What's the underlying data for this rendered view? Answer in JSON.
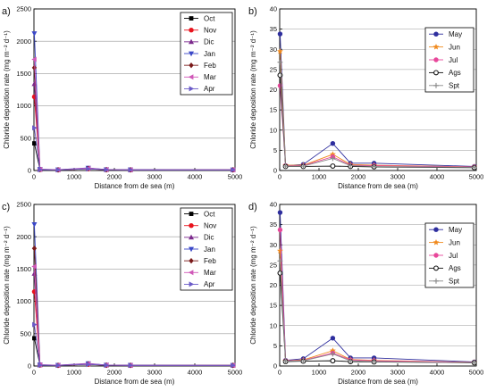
{
  "figure": {
    "panels_order": [
      "a",
      "b",
      "c",
      "d"
    ]
  },
  "chart_data": [
    {
      "panel_label": "a)",
      "type": "line",
      "xlabel": "Distance from de sea (m)",
      "ylabel": "Chloride deposition rate (mg m⁻² d⁻¹)",
      "xlim": [
        0,
        5000
      ],
      "ylim": [
        0,
        2500
      ],
      "xticks": [
        0,
        1000,
        2000,
        3000,
        4000,
        5000
      ],
      "yticks": [
        0,
        500,
        1000,
        1500,
        2000,
        2500
      ],
      "grid": "horizontal",
      "legend_position": "top-right",
      "x": [
        10,
        150,
        600,
        1350,
        1800,
        2400,
        4950
      ],
      "series": [
        {
          "name": "Oct",
          "color": "#000000",
          "marker": "square-filled",
          "values": [
            420,
            15,
            10,
            30,
            12,
            10,
            10
          ]
        },
        {
          "name": "Nov",
          "color": "#e8131d",
          "marker": "circle-filled",
          "values": [
            1140,
            15,
            10,
            25,
            12,
            10,
            10
          ]
        },
        {
          "name": "Dic",
          "color": "#7b2a8c",
          "marker": "triangle-up",
          "values": [
            1340,
            18,
            10,
            35,
            15,
            10,
            10
          ]
        },
        {
          "name": "Jan",
          "color": "#3b48c8",
          "marker": "triangle-down",
          "values": [
            2120,
            20,
            12,
            40,
            15,
            12,
            10
          ]
        },
        {
          "name": "Feb",
          "color": "#7a1a1a",
          "marker": "diamond",
          "values": [
            1590,
            15,
            10,
            30,
            12,
            10,
            10
          ]
        },
        {
          "name": "Mar",
          "color": "#d058b8",
          "marker": "triangle-left",
          "values": [
            1720,
            18,
            12,
            35,
            15,
            10,
            10
          ]
        },
        {
          "name": "Apr",
          "color": "#6a5ac8",
          "marker": "triangle-right",
          "values": [
            660,
            12,
            10,
            25,
            12,
            10,
            10
          ]
        }
      ]
    },
    {
      "panel_label": "b)",
      "type": "line",
      "xlabel": "Distance from de sea (m)",
      "ylabel": "Chloride deposition rate (mg m⁻² d⁻¹)",
      "xlim": [
        0,
        5000
      ],
      "ylim": [
        0,
        40
      ],
      "xticks": [
        0,
        1000,
        2000,
        3000,
        4000,
        5000
      ],
      "yticks": [
        0,
        5,
        10,
        15,
        20,
        25,
        30,
        35,
        40
      ],
      "grid": "horizontal",
      "legend_position": "top-right",
      "x": [
        10,
        150,
        600,
        1350,
        1800,
        2400,
        4950
      ],
      "series": [
        {
          "name": "May",
          "color": "#2e2e9e",
          "marker": "circle-filled",
          "values": [
            33.8,
            1.2,
            1.5,
            6.7,
            1.8,
            1.8,
            1.0
          ]
        },
        {
          "name": "Jun",
          "color": "#f08a1e",
          "marker": "star",
          "values": [
            29.5,
            1.3,
            1.3,
            4.0,
            1.5,
            1.3,
            0.9
          ]
        },
        {
          "name": "Jul",
          "color": "#e8479a",
          "marker": "circle-filled",
          "values": [
            21.0,
            1.2,
            1.2,
            3.4,
            1.3,
            1.2,
            0.9
          ]
        },
        {
          "name": "Ags",
          "color": "#111111",
          "marker": "circle-open",
          "values": [
            23.6,
            1.0,
            1.0,
            1.1,
            1.0,
            0.9,
            0.7
          ]
        },
        {
          "name": "Spt",
          "color": "#8a8a8a",
          "marker": "plus",
          "values": [
            26.8,
            1.1,
            1.1,
            3.0,
            1.2,
            1.0,
            0.8
          ]
        }
      ]
    },
    {
      "panel_label": "c)",
      "type": "line",
      "xlabel": "Distance from de sea (m)",
      "ylabel": "Chloride deposition rate (mg m⁻² d⁻¹)",
      "xlim": [
        0,
        5000
      ],
      "ylim": [
        0,
        2500
      ],
      "xticks": [
        0,
        1000,
        2000,
        3000,
        4000,
        5000
      ],
      "yticks": [
        0,
        500,
        1000,
        1500,
        2000,
        2500
      ],
      "grid": "horizontal",
      "legend_position": "top-right",
      "x": [
        10,
        150,
        600,
        1350,
        1800,
        2400,
        4950
      ],
      "series": [
        {
          "name": "Oct",
          "color": "#000000",
          "marker": "square-filled",
          "values": [
            430,
            15,
            10,
            30,
            12,
            10,
            10
          ]
        },
        {
          "name": "Nov",
          "color": "#e8131d",
          "marker": "circle-filled",
          "values": [
            1150,
            15,
            10,
            25,
            12,
            10,
            10
          ]
        },
        {
          "name": "Dic",
          "color": "#7b2a8c",
          "marker": "triangle-up",
          "values": [
            1430,
            18,
            10,
            35,
            15,
            10,
            10
          ]
        },
        {
          "name": "Jan",
          "color": "#3b48c8",
          "marker": "triangle-down",
          "values": [
            2190,
            20,
            12,
            40,
            15,
            12,
            10
          ]
        },
        {
          "name": "Feb",
          "color": "#7a1a1a",
          "marker": "diamond",
          "values": [
            1820,
            15,
            10,
            30,
            12,
            10,
            10
          ]
        },
        {
          "name": "Mar",
          "color": "#d058b8",
          "marker": "triangle-left",
          "values": [
            1540,
            18,
            12,
            35,
            15,
            10,
            10
          ]
        },
        {
          "name": "Apr",
          "color": "#6a5ac8",
          "marker": "triangle-right",
          "values": [
            640,
            12,
            10,
            25,
            12,
            10,
            10
          ]
        }
      ]
    },
    {
      "panel_label": "d)",
      "type": "line",
      "xlabel": "Distance from de sea (m)",
      "ylabel": "Chloride deposition rate (mg m⁻² d⁻¹)",
      "xlim": [
        0,
        5000
      ],
      "ylim": [
        0,
        40
      ],
      "xticks": [
        0,
        1000,
        2000,
        3000,
        4000,
        5000
      ],
      "yticks": [
        0,
        5,
        10,
        15,
        20,
        25,
        30,
        35,
        40
      ],
      "grid": "horizontal",
      "legend_position": "top-right",
      "x": [
        10,
        150,
        600,
        1350,
        1800,
        2400,
        4950
      ],
      "series": [
        {
          "name": "May",
          "color": "#2e2e9e",
          "marker": "circle-filled",
          "values": [
            38.0,
            1.4,
            1.8,
            6.9,
            2.0,
            2.0,
            1.0
          ]
        },
        {
          "name": "Jun",
          "color": "#f08a1e",
          "marker": "star",
          "values": [
            28.5,
            1.3,
            1.5,
            3.8,
            1.6,
            1.4,
            0.9
          ]
        },
        {
          "name": "Jul",
          "color": "#e8479a",
          "marker": "circle-filled",
          "values": [
            33.7,
            1.3,
            1.4,
            3.2,
            1.5,
            1.3,
            0.9
          ]
        },
        {
          "name": "Ags",
          "color": "#111111",
          "marker": "circle-open",
          "values": [
            23.0,
            1.1,
            1.2,
            1.3,
            1.1,
            1.0,
            0.8
          ]
        },
        {
          "name": "Spt",
          "color": "#8a8a8a",
          "marker": "plus",
          "values": [
            26.0,
            1.2,
            1.3,
            3.0,
            1.3,
            1.1,
            0.8
          ]
        }
      ]
    }
  ]
}
